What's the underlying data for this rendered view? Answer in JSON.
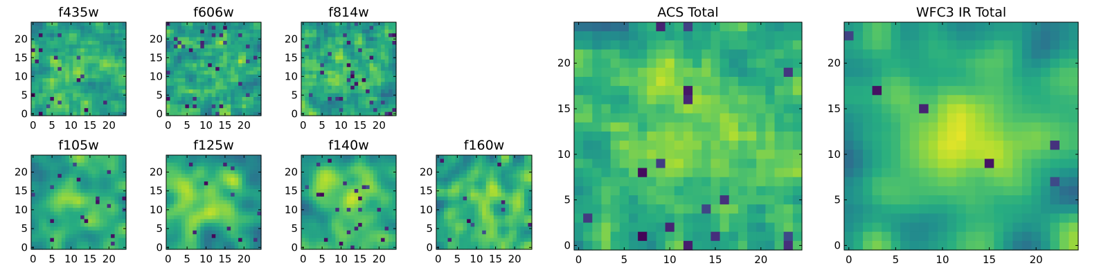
{
  "figure": {
    "description_colormap": "viridis",
    "colors": {
      "background": "#ffffff",
      "axis": "#000000"
    }
  },
  "chart_data": [
    {
      "type": "heatmap",
      "title": "f435w",
      "grid_size": 25,
      "xlim": [
        0,
        24
      ],
      "ylim": [
        0,
        24
      ],
      "xticks": [
        0,
        5,
        10,
        15,
        20
      ],
      "yticks": [
        0,
        5,
        10,
        15,
        20
      ],
      "xtick_labels": [
        "0",
        "5",
        "10",
        "15",
        "20"
      ],
      "ytick_labels": [
        "0",
        "5",
        "10",
        "15",
        "20"
      ],
      "colormap": "viridis",
      "seed": 11,
      "smoothness": 0.2,
      "center_boost": 0.25,
      "dark_rate": 0.04
    },
    {
      "type": "heatmap",
      "title": "f606w",
      "grid_size": 25,
      "xlim": [
        0,
        24
      ],
      "ylim": [
        0,
        24
      ],
      "xticks": [
        0,
        5,
        10,
        15,
        20
      ],
      "yticks": [
        0,
        5,
        10,
        15,
        20
      ],
      "xtick_labels": [
        "0",
        "5",
        "10",
        "15",
        "20"
      ],
      "ytick_labels": [
        "0",
        "5",
        "10",
        "15",
        "20"
      ],
      "colormap": "viridis",
      "seed": 23,
      "smoothness": 0.2,
      "center_boost": 0.2,
      "dark_rate": 0.04
    },
    {
      "type": "heatmap",
      "title": "f814w",
      "grid_size": 25,
      "xlim": [
        0,
        24
      ],
      "ylim": [
        0,
        24
      ],
      "xticks": [
        0,
        5,
        10,
        15,
        20
      ],
      "yticks": [
        0,
        5,
        10,
        15,
        20
      ],
      "xtick_labels": [
        "0",
        "5",
        "10",
        "15",
        "20"
      ],
      "ytick_labels": [
        "0",
        "5",
        "10",
        "15",
        "20"
      ],
      "colormap": "viridis",
      "seed": 37,
      "smoothness": 0.15,
      "center_boost": 0.2,
      "dark_rate": 0.05
    },
    {
      "type": "heatmap",
      "title": "f105w",
      "grid_size": 25,
      "xlim": [
        0,
        24
      ],
      "ylim": [
        0,
        24
      ],
      "xticks": [
        0,
        5,
        10,
        15,
        20
      ],
      "yticks": [
        0,
        5,
        10,
        15,
        20
      ],
      "xtick_labels": [
        "0",
        "5",
        "10",
        "15",
        "20"
      ],
      "ytick_labels": [
        "0",
        "5",
        "10",
        "15",
        "20"
      ],
      "colormap": "viridis",
      "seed": 41,
      "smoothness": 0.7,
      "center_boost": 0.45,
      "dark_rate": 0.02
    },
    {
      "type": "heatmap",
      "title": "f125w",
      "grid_size": 25,
      "xlim": [
        0,
        24
      ],
      "ylim": [
        0,
        24
      ],
      "xticks": [
        0,
        5,
        10,
        15,
        20
      ],
      "yticks": [
        0,
        5,
        10,
        15,
        20
      ],
      "xtick_labels": [
        "0",
        "5",
        "10",
        "15",
        "20"
      ],
      "ytick_labels": [
        "0",
        "5",
        "10",
        "15",
        "20"
      ],
      "colormap": "viridis",
      "seed": 53,
      "smoothness": 0.7,
      "center_boost": 0.3,
      "dark_rate": 0.02
    },
    {
      "type": "heatmap",
      "title": "f140w",
      "grid_size": 25,
      "xlim": [
        0,
        24
      ],
      "ylim": [
        0,
        24
      ],
      "xticks": [
        0,
        5,
        10,
        15,
        20
      ],
      "yticks": [
        0,
        5,
        10,
        15,
        20
      ],
      "xtick_labels": [
        "0",
        "5",
        "10",
        "15",
        "20"
      ],
      "ytick_labels": [
        "0",
        "5",
        "10",
        "15",
        "20"
      ],
      "colormap": "viridis",
      "seed": 67,
      "smoothness": 0.65,
      "center_boost": 0.3,
      "dark_rate": 0.025
    },
    {
      "type": "heatmap",
      "title": "f160w",
      "grid_size": 25,
      "xlim": [
        0,
        24
      ],
      "ylim": [
        0,
        24
      ],
      "xticks": [
        0,
        5,
        10,
        15,
        20
      ],
      "yticks": [
        0,
        5,
        10,
        15,
        20
      ],
      "xtick_labels": [
        "0",
        "5",
        "10",
        "15",
        "20"
      ],
      "ytick_labels": [
        "0",
        "5",
        "10",
        "15",
        "20"
      ],
      "colormap": "viridis",
      "seed": 79,
      "smoothness": 0.6,
      "center_boost": 0.35,
      "dark_rate": 0.025
    },
    {
      "type": "heatmap",
      "title": "ACS Total",
      "grid_size": 25,
      "xlim": [
        0,
        24
      ],
      "ylim": [
        0,
        24
      ],
      "xticks": [
        0,
        5,
        10,
        15,
        20
      ],
      "yticks": [
        0,
        5,
        10,
        15,
        20
      ],
      "xtick_labels": [
        "0",
        "5",
        "10",
        "15",
        "20"
      ],
      "ytick_labels": [
        "0",
        "5",
        "10",
        "15",
        "20"
      ],
      "colormap": "viridis",
      "seed": 97,
      "smoothness": 0.3,
      "center_boost": 0.25,
      "dark_rate": 0.03
    },
    {
      "type": "heatmap",
      "title": "WFC3 IR Total",
      "grid_size": 25,
      "xlim": [
        0,
        24
      ],
      "ylim": [
        0,
        24
      ],
      "xticks": [
        0,
        5,
        10,
        15,
        20
      ],
      "yticks": [
        0,
        5,
        10,
        15,
        20
      ],
      "xtick_labels": [
        "0",
        "5",
        "10",
        "15",
        "20"
      ],
      "ytick_labels": [
        "0",
        "5",
        "10",
        "15",
        "20"
      ],
      "colormap": "viridis",
      "seed": 113,
      "smoothness": 0.75,
      "center_boost": 0.55,
      "dark_rate": 0.015
    }
  ]
}
